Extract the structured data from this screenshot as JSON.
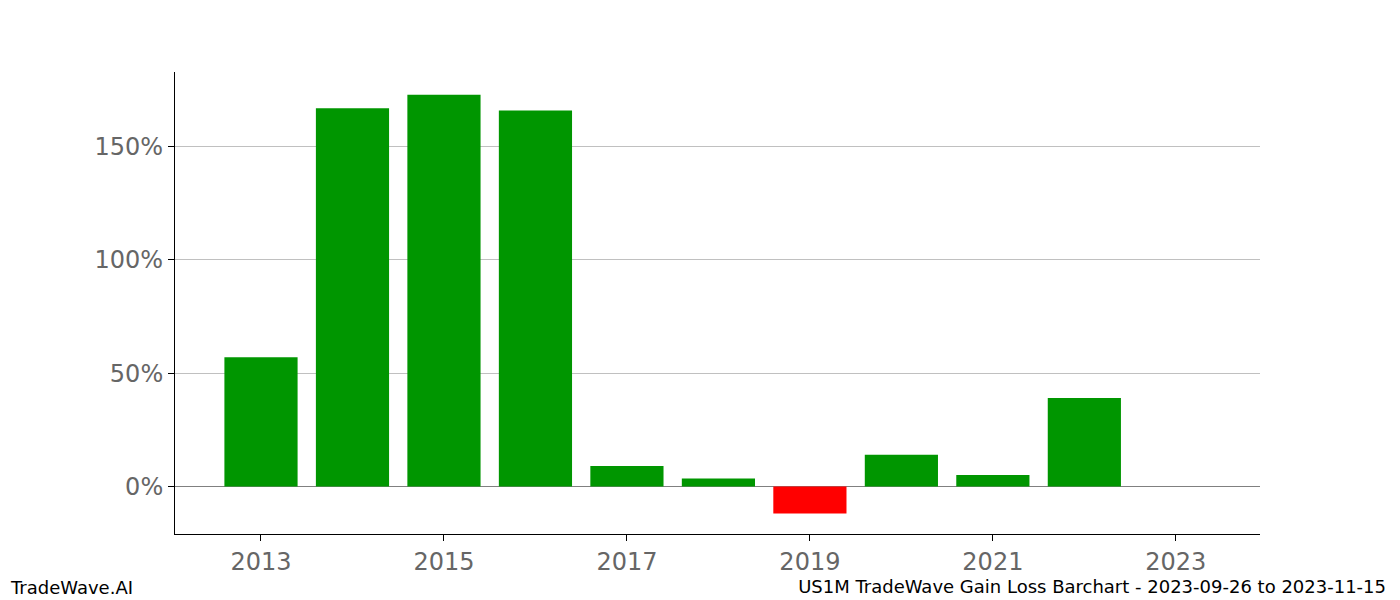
{
  "chart_data": {
    "type": "bar",
    "title": "US1M TradeWave Gain Loss Barchart - 2023-09-26 to 2023-11-15",
    "annotations": [
      "TradeWave.AI"
    ],
    "x": [
      2013,
      2014,
      2015,
      2016,
      2017,
      2018,
      2019,
      2020,
      2021,
      2022
    ],
    "values": [
      57,
      167,
      173,
      166,
      9,
      3.5,
      -12,
      14,
      5,
      39
    ],
    "colors": [
      "#009600",
      "#009600",
      "#009600",
      "#009600",
      "#009600",
      "#009600",
      "#ff0000",
      "#009600",
      "#009600",
      "#009600"
    ],
    "xlim": [
      2012.06,
      2023.92
    ],
    "xticks": [
      2013,
      2015,
      2017,
      2019,
      2021,
      2023
    ],
    "ylim": [
      -21,
      183
    ],
    "yticks": [
      {
        "value": 0,
        "label": "0%"
      },
      {
        "value": 50,
        "label": "50%"
      },
      {
        "value": 100,
        "label": "100%"
      },
      {
        "value": 150,
        "label": "150%"
      }
    ],
    "grid": true
  }
}
